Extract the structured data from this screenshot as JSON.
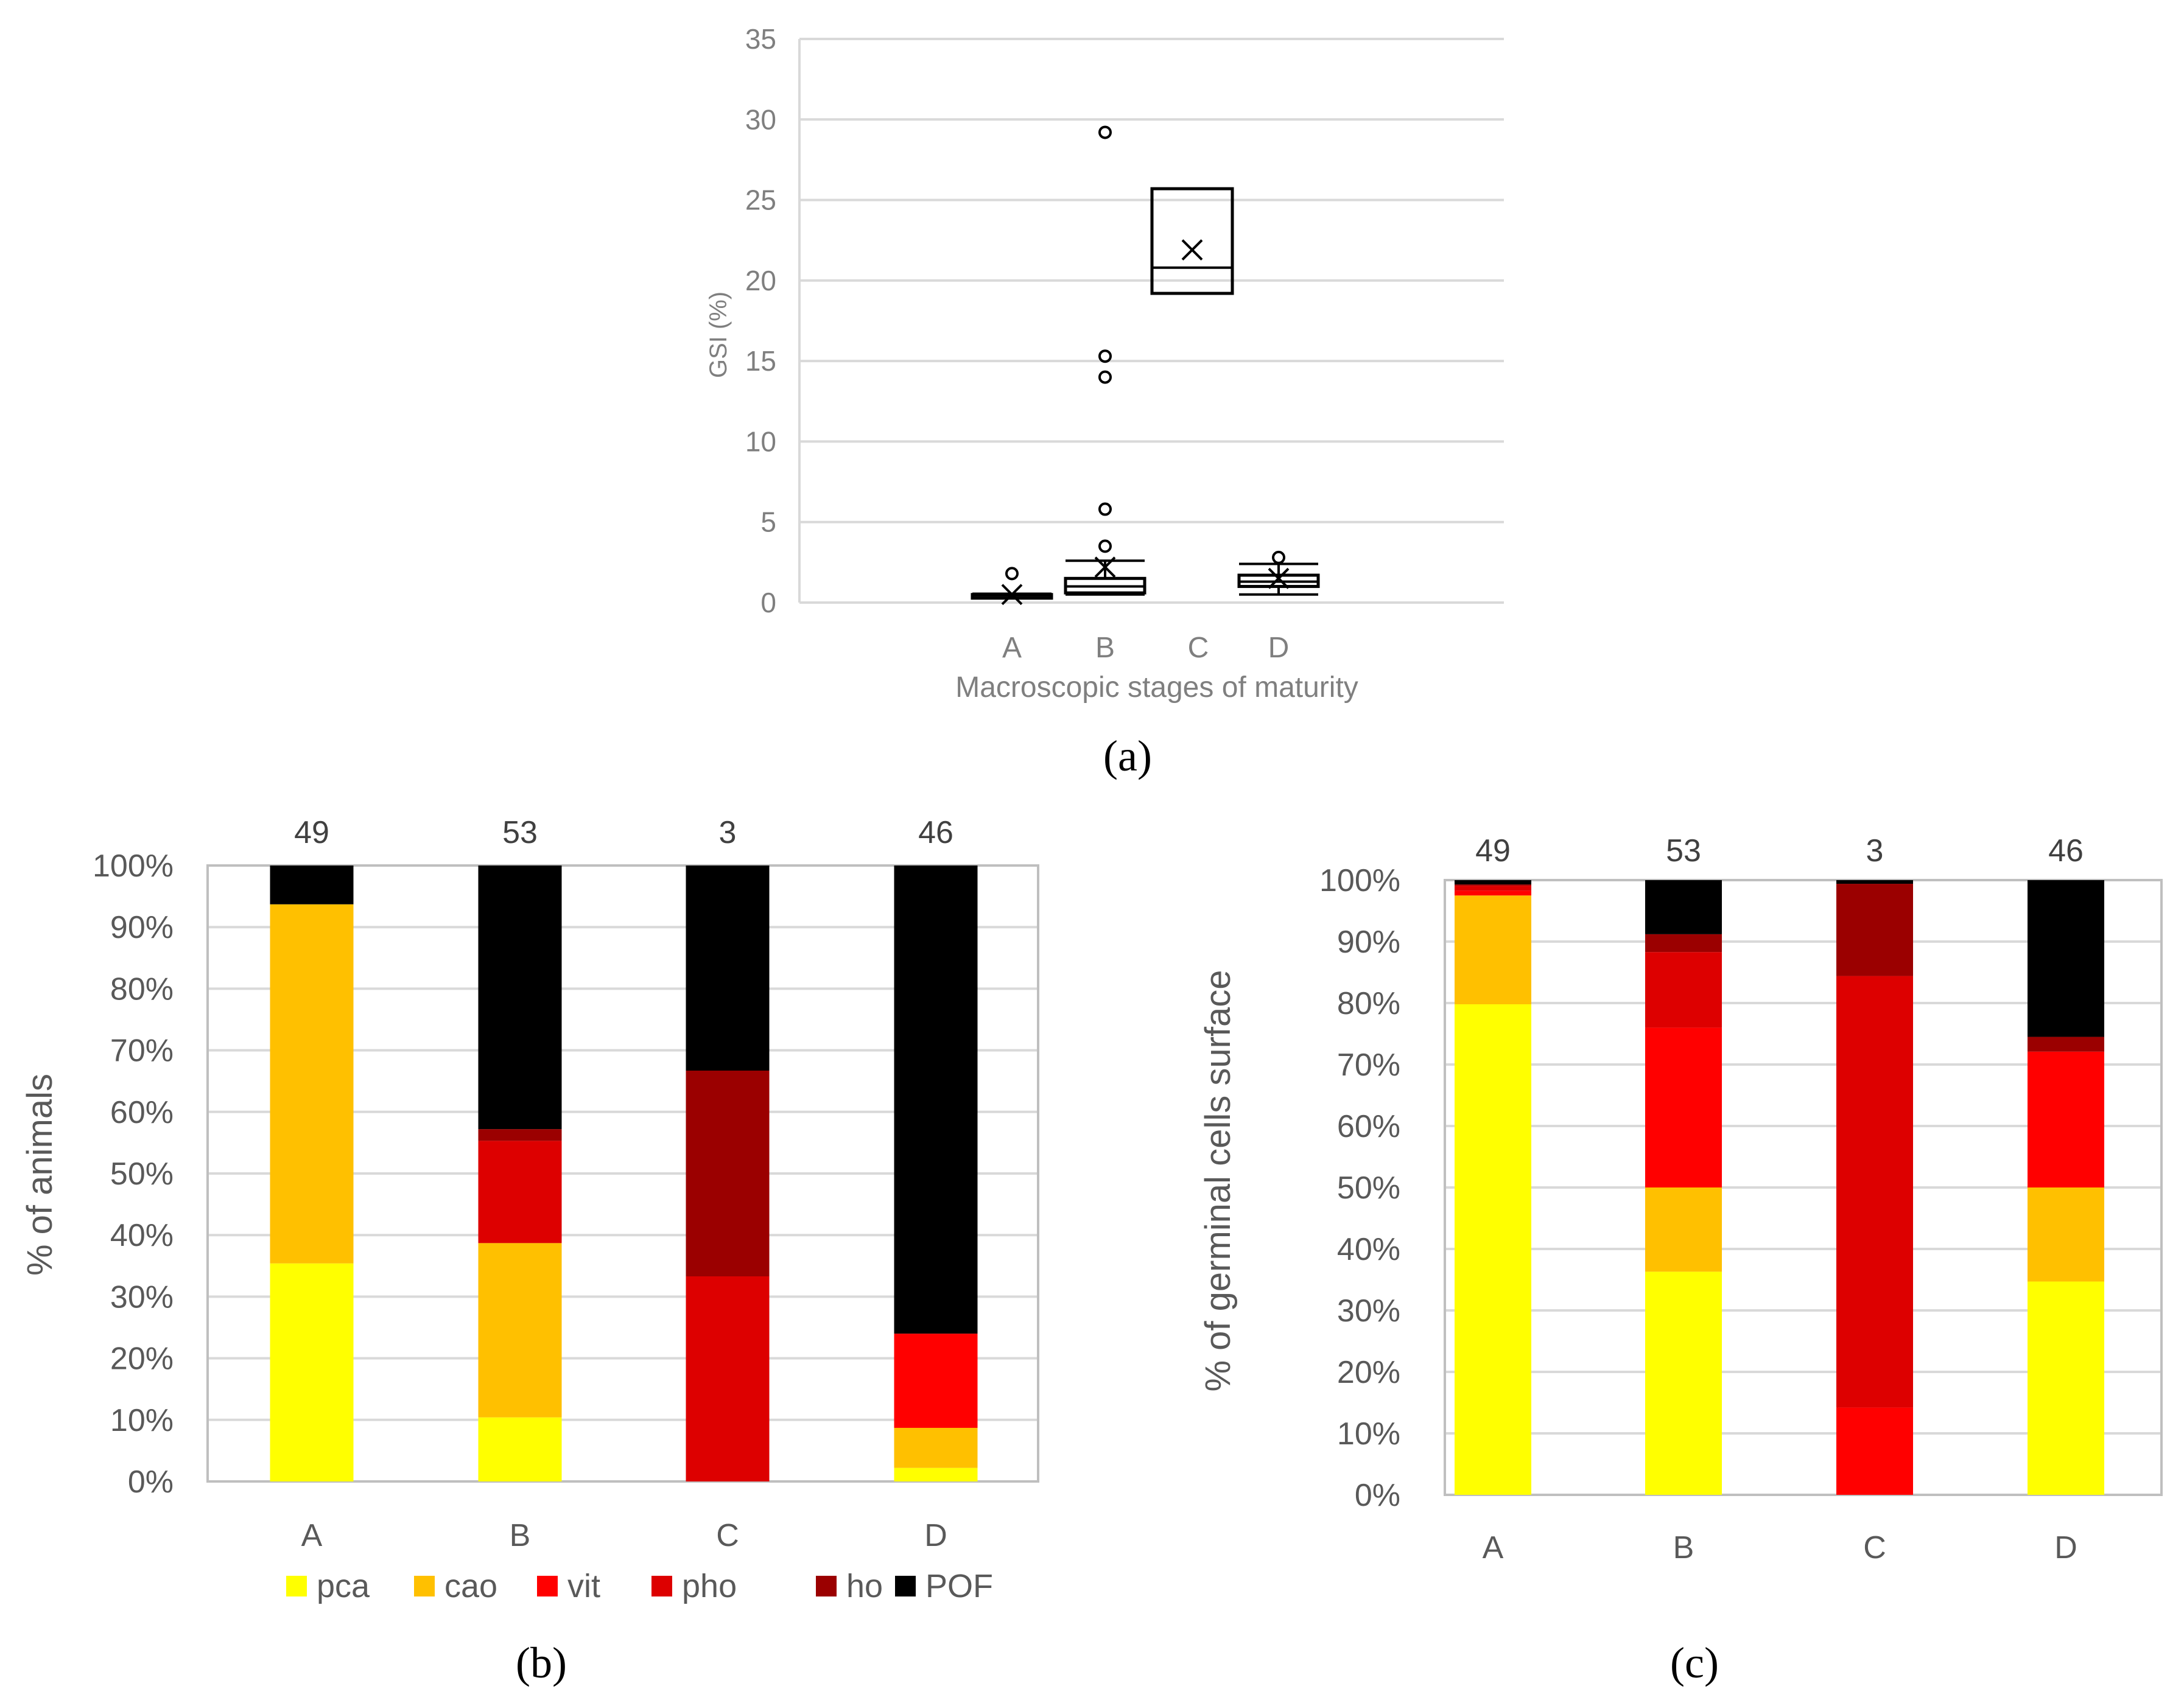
{
  "captions": {
    "a": "(a)",
    "b": "(b)",
    "c": "(c)"
  },
  "caption_letters": {
    "a": "a",
    "b": "b",
    "c": "c"
  },
  "colors": {
    "pca": "#FFFF00",
    "cao": "#FFC000",
    "vit": "#FF0000",
    "pho": "#DD0000",
    "ho": "#9B0000",
    "POF": "#000000",
    "grid": "#D9D9D9",
    "axis_text": "#7F7F7F"
  },
  "chart_data": [
    {
      "id": "a",
      "type": "box",
      "title": "",
      "xlabel": "Macroscopic stages of maturity",
      "ylabel": "GSI (%)",
      "ylim": [
        0,
        35
      ],
      "yticks": [
        0,
        5,
        10,
        15,
        20,
        25,
        30,
        35
      ],
      "categories": [
        "A",
        "B",
        "C",
        "D"
      ],
      "boxes": [
        {
          "category": "A",
          "min": 0.3,
          "q1": 0.4,
          "median": 0.45,
          "q3": 0.5,
          "max": 0.55,
          "mean": 0.5,
          "outliers": [
            1.8
          ]
        },
        {
          "category": "B",
          "min": 0.5,
          "q1": 0.6,
          "median": 1.0,
          "q3": 1.5,
          "max": 2.6,
          "mean": 2.2,
          "outliers": [
            3.5,
            5.8,
            14.0,
            15.3,
            29.2
          ]
        },
        {
          "category": "C",
          "min": 19.2,
          "q1": 19.2,
          "median": 20.8,
          "q3": 25.7,
          "max": 25.7,
          "mean": 21.9,
          "outliers": []
        },
        {
          "category": "D",
          "min": 0.5,
          "q1": 1.0,
          "median": 1.3,
          "q3": 1.7,
          "max": 2.4,
          "mean": 1.5,
          "outliers": [
            2.8
          ]
        }
      ]
    },
    {
      "id": "b",
      "type": "bar",
      "stacked": true,
      "ylabel": "% of animals",
      "ylim": [
        0,
        100
      ],
      "yticks": [
        "0%",
        "10%",
        "20%",
        "30%",
        "40%",
        "50%",
        "60%",
        "70%",
        "80%",
        "90%",
        "100%"
      ],
      "categories": [
        "A",
        "B",
        "C",
        "D"
      ],
      "top_labels": [
        "49",
        "53",
        "3",
        "46"
      ],
      "legend": [
        "pca",
        "cao",
        "vit",
        "pho",
        "ho",
        "POF"
      ],
      "series": [
        {
          "name": "pca",
          "values": [
            35.4,
            10.4,
            0,
            2.2
          ]
        },
        {
          "name": "cao",
          "values": [
            58.3,
            28.3,
            0,
            6.5
          ]
        },
        {
          "name": "vit",
          "values": [
            0,
            0,
            0,
            15.3
          ]
        },
        {
          "name": "pho",
          "values": [
            0,
            16.6,
            33.3,
            0
          ]
        },
        {
          "name": "ho",
          "values": [
            0,
            1.9,
            33.4,
            0
          ]
        },
        {
          "name": "POF",
          "values": [
            6.3,
            42.8,
            33.3,
            76.0
          ]
        }
      ]
    },
    {
      "id": "c",
      "type": "bar",
      "stacked": true,
      "ylabel": "% of germinal cells surface",
      "ylim": [
        0,
        100
      ],
      "yticks": [
        "0%",
        "10%",
        "20%",
        "30%",
        "40%",
        "50%",
        "60%",
        "70%",
        "80%",
        "90%",
        "100%"
      ],
      "categories": [
        "A",
        "B",
        "C",
        "D"
      ],
      "top_labels": [
        "49",
        "53",
        "3",
        "46"
      ],
      "series": [
        {
          "name": "pca",
          "values": [
            79.8,
            36.3,
            0,
            34.7
          ]
        },
        {
          "name": "cao",
          "values": [
            17.7,
            13.7,
            0,
            15.3
          ]
        },
        {
          "name": "vit",
          "values": [
            0.8,
            26.0,
            14.2,
            22.1
          ]
        },
        {
          "name": "pho",
          "values": [
            0.8,
            12.3,
            70.2,
            0
          ]
        },
        {
          "name": "ho",
          "values": [
            0.2,
            2.9,
            15.0,
            2.4
          ]
        },
        {
          "name": "POF",
          "values": [
            0.7,
            8.8,
            0.6,
            25.5
          ]
        }
      ]
    }
  ]
}
